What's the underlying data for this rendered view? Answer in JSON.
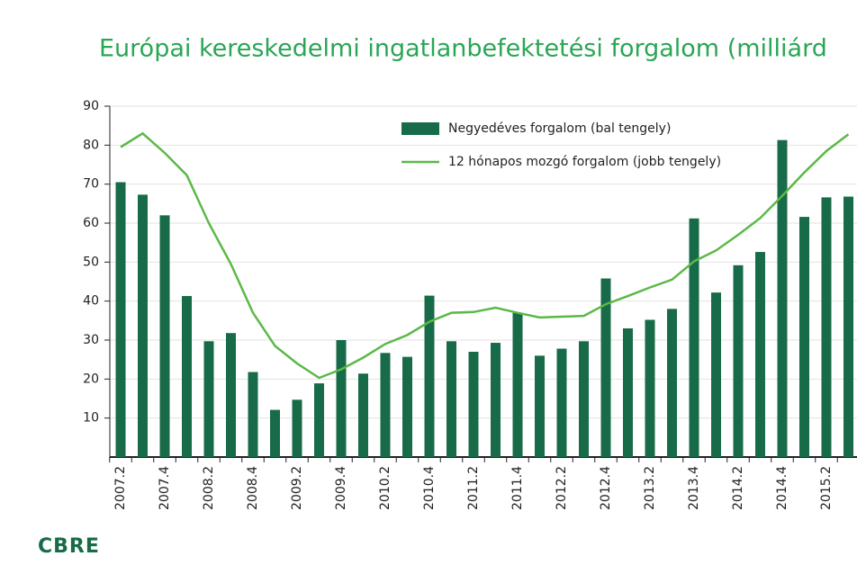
{
  "chart_data": {
    "type": "bar_line",
    "title": "Európai kereskedelmi ingatlanbefektetési forgalom (milliárd",
    "categories": [
      "2007.2",
      null,
      "2007.4",
      null,
      "2008.2",
      null,
      "2008.4",
      null,
      "2009.2",
      null,
      "2009.4",
      null,
      "2010.2",
      null,
      "2010.4",
      null,
      "2011.2",
      null,
      "2011.4",
      null,
      "2012.2",
      null,
      "2012.4",
      null,
      "2013.2",
      null,
      "2013.4",
      null,
      "2014.2",
      null,
      "2014.4",
      null,
      "2015.2",
      null
    ],
    "series": [
      {
        "name": "Negyedéves forgalom (bal tengely)",
        "type": "bar",
        "color": "#176b48",
        "values": [
          70.5,
          67.3,
          62,
          41.3,
          29.7,
          31.8,
          21.8,
          12.1,
          14.7,
          18.9,
          30,
          21.4,
          26.7,
          25.7,
          41.4,
          29.7,
          27,
          29.3,
          37,
          26,
          27.8,
          29.7,
          45.8,
          33,
          35.2,
          38,
          61.2,
          42.2,
          49.2,
          52.6,
          81.3,
          61.6,
          66.6,
          66.8
        ]
      },
      {
        "name": "12 hónapos mozgó forgalom (jobb tengely)",
        "type": "line",
        "color": "#5bb947",
        "values": [
          79.5,
          83,
          78,
          72.3,
          60,
          49.5,
          37,
          28.5,
          24,
          20.3,
          22.5,
          25.5,
          29,
          31.3,
          34.7,
          37,
          37.2,
          38.3,
          37,
          35.8,
          36,
          36.2,
          39.2,
          41.3,
          43.5,
          45.5,
          50.2,
          53,
          57,
          61.3,
          67,
          73,
          78.5,
          82.8
        ]
      }
    ],
    "ylim": [
      0,
      90
    ],
    "yticks": [
      10,
      20,
      30,
      40,
      50,
      60,
      70,
      80,
      90
    ],
    "grid": true,
    "logo": "CBRE"
  }
}
